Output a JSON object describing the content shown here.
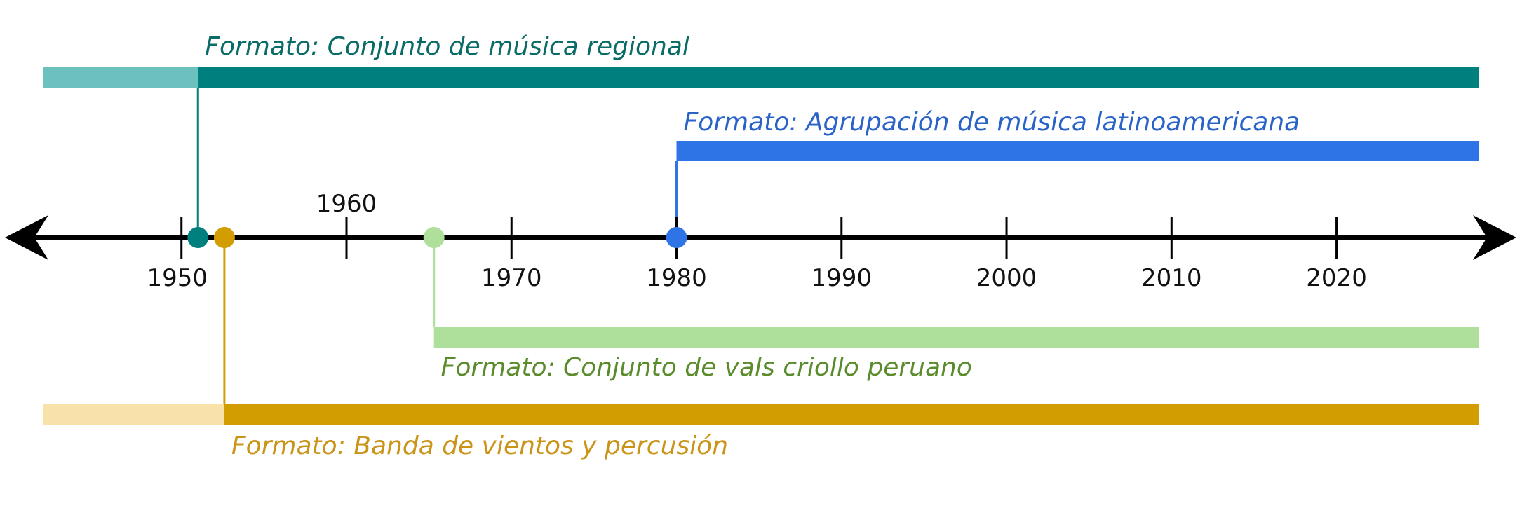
{
  "timeline": {
    "xlim": [
      1939.3,
      2030.9
    ],
    "ticks": [
      1950,
      1960,
      1970,
      1980,
      1990,
      2000,
      2010,
      2020
    ],
    "events": [
      {
        "label": "Formato: Conjunto de música regional",
        "start": 1951,
        "color": "#007f7f",
        "lead_color": "#6cc0bd",
        "text_color": "#0b6b66"
      },
      {
        "label": "Formato: Agrupación de música latinoamericana",
        "start": 1980,
        "color": "#2f74e6",
        "text_color": "#2a63c8"
      },
      {
        "label": "Formato: Conjunto de vals criollo peruano",
        "start": 1965.3,
        "color": "#aee09b",
        "text_color": "#5b8c2c"
      },
      {
        "label": "Formato: Banda de vientos y percusión",
        "start": 1952.6,
        "color": "#d29d00",
        "lead_color": "#f8e2a9",
        "text_color": "#c99418"
      }
    ]
  }
}
